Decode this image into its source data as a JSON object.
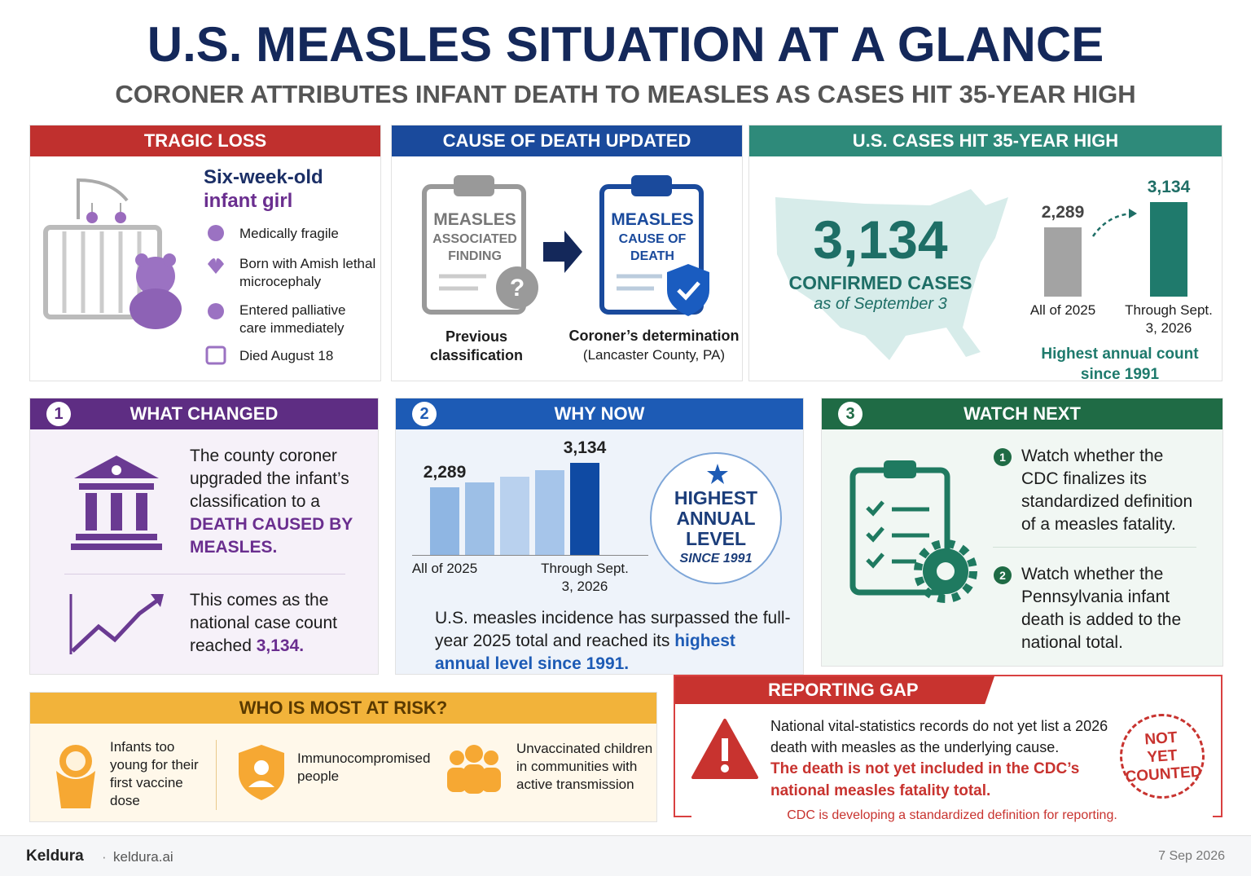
{
  "header": {
    "title": "U.S. MEASLES SITUATION AT A GLANCE",
    "subtitle": "CORONER ATTRIBUTES INFANT DEATH TO MEASLES AS CASES HIT 35-YEAR HIGH"
  },
  "tragic_loss": {
    "heading": "TRAGIC LOSS",
    "subject": [
      "Six-week-old",
      "infant girl"
    ],
    "facts": [
      "Medically fragile",
      "Born with Amish lethal microcephaly",
      "Entered palliative care immediately",
      "Died August 18"
    ]
  },
  "cause_of_death": {
    "heading": "CAUSE OF DEATH UPDATED",
    "before": {
      "title": "MEASLES",
      "lines": [
        "ASSOCIATED",
        "FINDING"
      ],
      "caption": "Previous classification"
    },
    "after": {
      "title": "MEASLES",
      "lines": [
        "CAUSE OF",
        "DEATH"
      ],
      "caption": "Coroner’s determination",
      "note": "(Lancaster County, PA)"
    }
  },
  "cases": {
    "heading": "U.S. CASES HIT 35-YEAR HIGH",
    "big_number": "3,134",
    "big_label": "CONFIRMED CASES",
    "big_note": "as of September 3",
    "chart": {
      "type": "bar",
      "categories": [
        "All of 2025",
        "Through Sept. 3, 2026"
      ],
      "values": [
        2289,
        3134
      ],
      "value_labels": [
        "2,289",
        "3,134"
      ],
      "colors": [
        "#a3a3a3",
        "#1f7a6c"
      ],
      "value_label_colors": [
        "#444444",
        "#1f6e66"
      ]
    },
    "caption": "Highest annual count since 1991"
  },
  "what_changed": {
    "number": "1",
    "heading": "WHAT CHANGED",
    "text": "The county coroner upgraded the infant’s classification to a",
    "highlight": "DEATH CAUSED BY MEASLES.",
    "text2": "This comes as the national case count reached",
    "highlight2": "3,134."
  },
  "why_now": {
    "number": "2",
    "heading": "WHY NOW",
    "chart": {
      "type": "bar",
      "categories": [
        "All of 2025",
        null,
        null,
        null,
        "Through Sept. 3, 2026"
      ],
      "values": [
        2289,
        2480,
        2670,
        2890,
        3134
      ],
      "value_labels": [
        "2,289",
        null,
        null,
        null,
        "3,134"
      ],
      "colors": [
        "#8fb6e3",
        "#9dbfe6",
        "#b9d1ee",
        "#a6c5ea",
        "#0f4aa3"
      ],
      "value_label_colors": [
        "#222222",
        null,
        null,
        null,
        "#222222"
      ]
    },
    "badge": {
      "lines": [
        "HIGHEST",
        "ANNUAL",
        "LEVEL"
      ],
      "note": "SINCE 1991"
    },
    "text": "U.S. measles incidence has surpassed the full-year 2025 total and reached its",
    "highlight": "highest annual level since 1991."
  },
  "watch_next": {
    "number": "3",
    "heading": "WATCH NEXT",
    "items": [
      {
        "number": "1",
        "text": "Watch whether the CDC finalizes its standardized definition of a measles fatality."
      },
      {
        "number": "2",
        "text": "Watch whether the Pennsylvania infant death is added to the national total."
      }
    ]
  },
  "at_risk": {
    "heading": "WHO IS MOST AT RISK?",
    "groups": [
      "Infants too young for their first vaccine dose",
      "Immunocompromised people",
      "Unvaccinated children in communities with active transmission"
    ]
  },
  "reporting_gap": {
    "heading": "REPORTING GAP",
    "text": "National vital-statistics records do not yet list a 2026 death with measles as the underlying cause.",
    "highlight": "The death is not yet included in the CDC’s national measles fatality total.",
    "stamp": [
      "NOT",
      "YET",
      "COUNTED"
    ],
    "footnote": "CDC is developing a standardized definition for reporting."
  },
  "footer": {
    "brand": "Keldura",
    "site": "keldura.ai",
    "date": "7 Sep 2026"
  }
}
